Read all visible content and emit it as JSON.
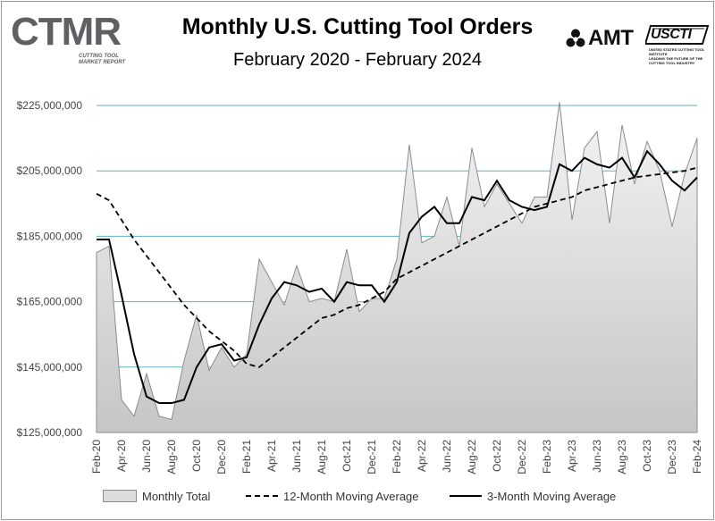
{
  "header": {
    "title": "Monthly U.S. Cutting Tool Orders",
    "subtitle": "February 2020 - February 2024"
  },
  "logos": {
    "ctmr": "CTMR",
    "ctmr_sub_line1": "Cutting Tool",
    "ctmr_sub_line2": "Market Report",
    "amt": "AMT",
    "usc": "USCTI",
    "usc_sub_line1": "United States Cutting Tool Institute",
    "usc_sub_line2": "Leading the Future of the Cutting Tool Industry"
  },
  "legend": {
    "monthly_total": "Monthly Total",
    "ma12": "12-Month Moving Average",
    "ma3": "3-Month Moving Average"
  },
  "colors": {
    "gridline": "#5fb2c2",
    "area_top": "#f4f4f4",
    "area_bottom": "#c6c6c6",
    "area_stroke": "#8c8c8c",
    "line": "#000000"
  },
  "chart_data": {
    "type": "area",
    "title": "Monthly U.S. Cutting Tool Orders",
    "subtitle": "February 2020 - February 2024",
    "xlabel": "",
    "ylabel": "",
    "ylim": [
      125000000,
      225000000
    ],
    "yticks": [
      125000000,
      145000000,
      165000000,
      185000000,
      205000000,
      225000000
    ],
    "ytick_labels": [
      "$125,000,000",
      "$145,000,000",
      "$165,000,000",
      "$185,000,000",
      "$205,000,000",
      "$225,000,000"
    ],
    "grid": true,
    "legend_position": "bottom",
    "x_tick_labels": [
      "Feb-20",
      "Apr-20",
      "Jun-20",
      "Aug-20",
      "Oct-20",
      "Dec-20",
      "Feb-21",
      "Apr-21",
      "Jun-21",
      "Aug-21",
      "Oct-21",
      "Dec-21",
      "Feb-22",
      "Apr-22",
      "Jun-22",
      "Aug-22",
      "Oct-22",
      "Dec-22",
      "Feb-23",
      "Apr-23",
      "Jun-23",
      "Aug-23",
      "Oct-23",
      "Dec-23",
      "Feb-24"
    ],
    "series": [
      {
        "name": "Monthly Total",
        "style": "area",
        "values": [
          180000000,
          182000000,
          135000000,
          130000000,
          143000000,
          130000000,
          129000000,
          147000000,
          161000000,
          144000000,
          151000000,
          145000000,
          149000000,
          178000000,
          171000000,
          164000000,
          176000000,
          165000000,
          166000000,
          165000000,
          181000000,
          162000000,
          166000000,
          166000000,
          178000000,
          213000000,
          183000000,
          185000000,
          197000000,
          182000000,
          212000000,
          194000000,
          201000000,
          195000000,
          189000000,
          197000000,
          197000000,
          226000000,
          190000000,
          212000000,
          217000000,
          189000000,
          219000000,
          201000000,
          214000000,
          205000000,
          188000000,
          204000000,
          215000000
        ]
      },
      {
        "name": "12-Month Moving Average",
        "style": "dashed",
        "values": [
          198000000,
          196000000,
          190000000,
          184000000,
          179000000,
          174000000,
          169000000,
          164000000,
          160000000,
          156000000,
          153000000,
          150000000,
          146000000,
          145000000,
          148000000,
          151000000,
          154000000,
          157000000,
          160000000,
          161000000,
          163000000,
          164000000,
          166000000,
          168000000,
          172000000,
          174000000,
          176000000,
          178000000,
          180000000,
          182000000,
          184000000,
          186000000,
          188000000,
          190000000,
          192000000,
          194000000,
          195000000,
          196000000,
          197000000,
          199000000,
          200000000,
          201000000,
          202000000,
          203000000,
          203500000,
          204000000,
          204500000,
          205000000,
          206000000
        ]
      },
      {
        "name": "3-Month Moving Average",
        "style": "solid",
        "values": [
          184000000,
          184000000,
          167000000,
          149000000,
          136000000,
          134000000,
          134000000,
          135000000,
          145000000,
          151000000,
          152000000,
          147000000,
          148000000,
          158000000,
          166000000,
          171000000,
          170000000,
          168000000,
          169000000,
          165000000,
          171000000,
          170000000,
          170000000,
          165000000,
          171000000,
          186000000,
          191000000,
          194000000,
          189000000,
          189000000,
          197000000,
          196000000,
          202000000,
          196000000,
          194000000,
          193000000,
          194000000,
          207000000,
          205000000,
          209000000,
          207000000,
          206000000,
          209000000,
          203000000,
          211000000,
          207000000,
          202000000,
          199000000,
          203000000
        ]
      }
    ]
  }
}
